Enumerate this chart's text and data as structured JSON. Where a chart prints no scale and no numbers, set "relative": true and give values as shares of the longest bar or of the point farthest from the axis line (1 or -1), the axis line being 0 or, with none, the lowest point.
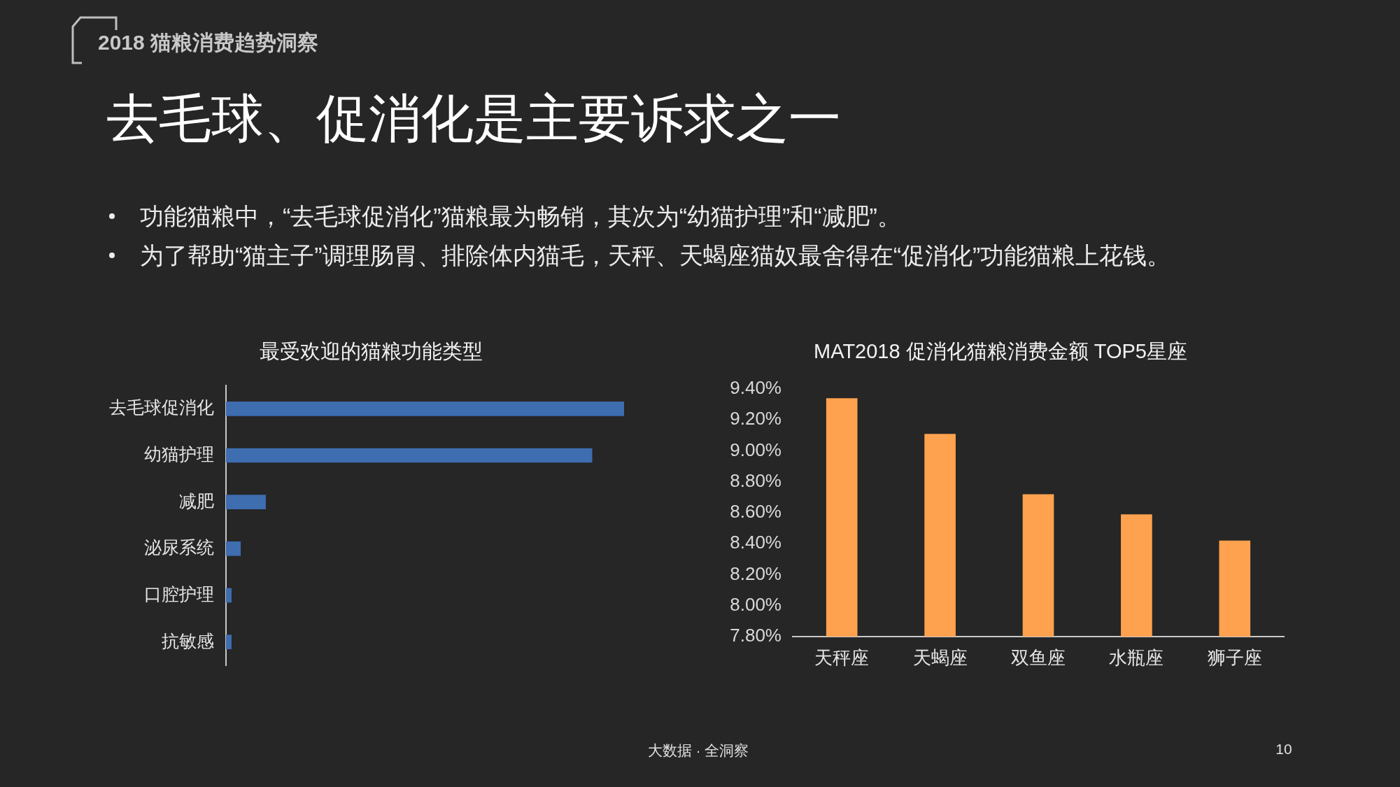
{
  "chart_data": [
    {
      "type": "other",
      "title": "去毛球、促消化是主要诉求之一",
      "subtitle": "2018 猫粮消费趋势洞察",
      "annotations": [
        "功能猫粮中，“去毛球促消化”猫粮最为畅销，其次为“幼猫护理”和“减肥”。",
        "为了帮助“猫主子”调理肠胃、排除体内猫毛，天秤、天蝎座猫奴最舍得在“促消化”功能猫粮上花钱。",
        "大数据 · 全洞察",
        "10"
      ]
    },
    {
      "type": "bar",
      "title": "最受欢迎的猫粮功能类型",
      "orientation": "horizontal",
      "relative": true,
      "categories": [
        "去毛球促消化",
        "幼猫护理",
        "减肥",
        "泌尿系统",
        "口腔护理",
        "抗敏感"
      ],
      "values": [
        1,
        0.92,
        0.1,
        0.037,
        0.014,
        0.014
      ],
      "color": "#3e6db0"
    },
    {
      "type": "bar",
      "title": "MAT2018 促消化猫粮消费金额 TOP5星座",
      "categories": [
        "天秤座",
        "天蝎座",
        "双鱼座",
        "水瓶座",
        "狮子座"
      ],
      "values": [
        9.34,
        9.11,
        8.72,
        8.59,
        8.42
      ],
      "color": "#ffa24f",
      "ylim": [
        7.8,
        9.4
      ],
      "yticks": [
        {
          "value": 7.8,
          "label": "7.80%"
        },
        {
          "value": 8.0,
          "label": "8.00%"
        },
        {
          "value": 8.2,
          "label": "8.20%"
        },
        {
          "value": 8.4,
          "label": "8.40%"
        },
        {
          "value": 8.6,
          "label": "8.60%"
        },
        {
          "value": 8.8,
          "label": "8.80%"
        },
        {
          "value": 9.0,
          "label": "9.00%"
        },
        {
          "value": 9.2,
          "label": "9.20%"
        },
        {
          "value": 9.4,
          "label": "9.40%"
        }
      ]
    }
  ]
}
